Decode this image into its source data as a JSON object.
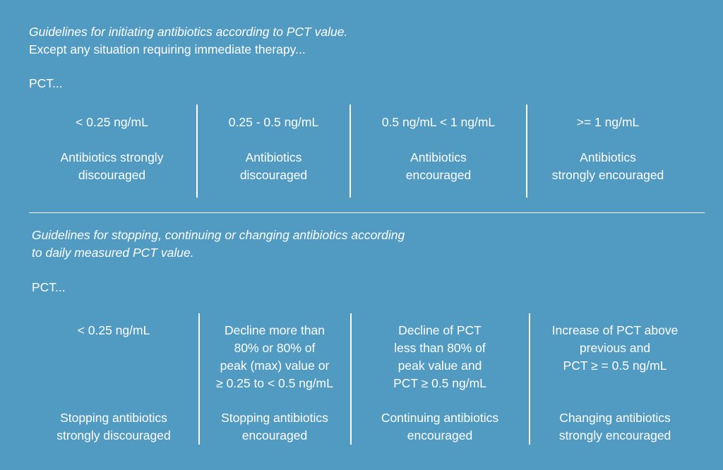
{
  "section1": {
    "heading": "Guidelines for initiating antibiotics according to PCT value.",
    "subheading": "Except any situation requiring immediate therapy...",
    "pct_label": "PCT...",
    "columns": [
      {
        "range": "< 0.25 ng/mL",
        "rec_line1": "Antibiotics strongly",
        "rec_line2": "discouraged"
      },
      {
        "range": "0.25 - 0.5 ng/mL",
        "rec_line1": "Antibiotics",
        "rec_line2": "discouraged"
      },
      {
        "range": "0.5 ng/mL < 1 ng/mL",
        "rec_line1": "Antibiotics",
        "rec_line2": "encouraged"
      },
      {
        "range": ">= 1 ng/mL",
        "rec_line1": "Antibiotics",
        "rec_line2": "strongly encouraged"
      }
    ]
  },
  "section2": {
    "heading_line1": "Guidelines for stopping, continuing or changing antibiotics according",
    "heading_line2": "to daily measured PCT value.",
    "pct_label": "PCT...",
    "columns": [
      {
        "condition": [
          "< 0.25 ng/mL"
        ],
        "rec_line1": "Stopping antibiotics",
        "rec_line2": "strongly discouraged"
      },
      {
        "condition": [
          "Decline more than",
          "80% or 80% of",
          "peak (max) value or",
          "≥ 0.25 to < 0.5 ng/mL"
        ],
        "rec_line1": "Stopping antibiotics",
        "rec_line2": "encouraged"
      },
      {
        "condition": [
          "Decline of PCT",
          "less than 80% of",
          "peak value and",
          "PCT ≥ 0.5 ng/mL"
        ],
        "rec_line1": "Continuing antibiotics",
        "rec_line2": "encouraged"
      },
      {
        "condition": [
          "Increase of PCT above",
          "previous and",
          "PCT ≥ = 0.5 ng/mL"
        ],
        "rec_line1": "Changing antibiotics",
        "rec_line2": "strongly encouraged"
      }
    ]
  }
}
